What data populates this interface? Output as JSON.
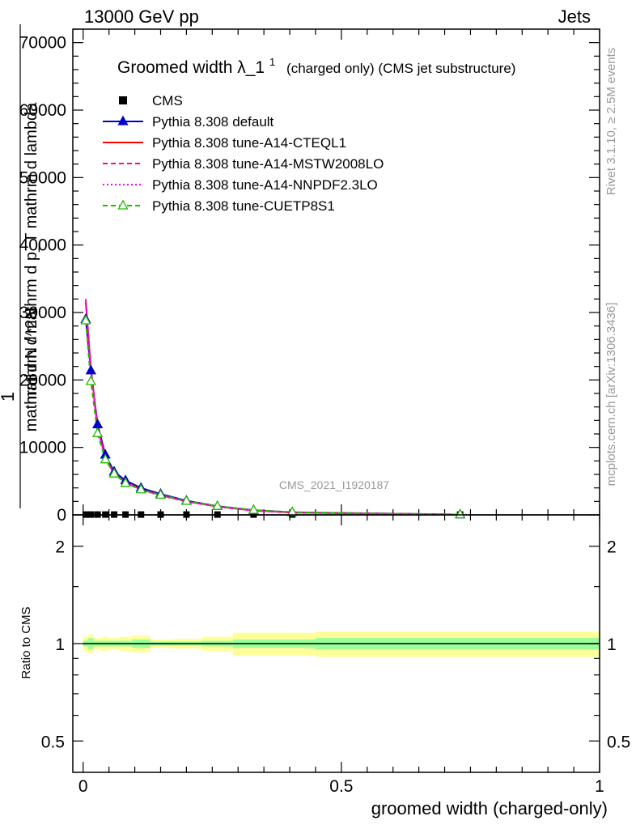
{
  "header": {
    "energy_label": "13000 GeV pp",
    "category_label": "Jets"
  },
  "side_labels": {
    "rivet": "Rivet 3.1.10, ≥ 2.5M events",
    "source": "mcplots.cern.ch [arXiv:1306.3436]"
  },
  "chart_data": [
    {
      "type": "line",
      "panel": "main",
      "title": "Groomed width",
      "title_symbol": "λ_1",
      "title_superscript": "1",
      "subtitle": "(charged only) (CMS jet substructure)",
      "watermark": "CMS_2021_I1920187",
      "ylabel_numerator": "1",
      "ylabel_denominator": "mathrm d N / mathrm d p_T mathrm d lambda",
      "ylabel_top": "mathrm d^2N",
      "ylim": [
        0,
        72000
      ],
      "xlim": [
        -0.02,
        1.0
      ],
      "y_ticks": [
        0,
        10000,
        20000,
        30000,
        40000,
        50000,
        60000,
        70000
      ],
      "legend_placement": "top-left",
      "x": [
        0.005,
        0.015,
        0.028,
        0.043,
        0.06,
        0.082,
        0.112,
        0.15,
        0.2,
        0.26,
        0.33,
        0.405,
        0.73
      ],
      "series": [
        {
          "name": "CMS",
          "color": "#000000",
          "marker": "square",
          "values": [
            50,
            50,
            50,
            50,
            50,
            50,
            50,
            50,
            50,
            50,
            50,
            50,
            50
          ]
        },
        {
          "name": "Pythia 8.308 default",
          "color": "#0000cc",
          "marker": "triangle",
          "dash": "solid",
          "values": [
            29000,
            21400,
            13400,
            8900,
            6400,
            5100,
            4000,
            3100,
            2100,
            1300,
            700,
            380,
            50
          ]
        },
        {
          "name": "Pythia 8.308 tune-A14-CTEQL1",
          "color": "#ff0000",
          "marker": "none",
          "dash": "solid",
          "values": [
            31500,
            21800,
            12900,
            8600,
            6100,
            4900,
            3800,
            2950,
            2000,
            1250,
            650,
            350,
            45
          ]
        },
        {
          "name": "Pythia 8.308 tune-A14-MSTW2008LO",
          "color": "#ff00aa",
          "marker": "none",
          "dash": "dashed",
          "values": [
            31800,
            21700,
            12800,
            8550,
            6050,
            4850,
            3750,
            2900,
            1980,
            1230,
            640,
            340,
            45
          ]
        },
        {
          "name": "Pythia 8.308 tune-A14-NNPDF2.3LO",
          "color": "#ff00ff",
          "marker": "none",
          "dash": "dotted",
          "values": [
            32000,
            21600,
            12700,
            8500,
            6000,
            4800,
            3700,
            2880,
            1960,
            1220,
            630,
            335,
            45
          ]
        },
        {
          "name": "Pythia 8.308 tune-CUETP8S1",
          "color": "#22bb00",
          "marker": "open-triangle",
          "dash": "dashed",
          "values": [
            28800,
            19800,
            12100,
            8200,
            6100,
            4700,
            3750,
            2950,
            2050,
            1300,
            720,
            400,
            50
          ]
        }
      ]
    },
    {
      "type": "area",
      "panel": "ratio",
      "ylabel": "Ratio to CMS",
      "xlabel": "groomed width (charged-only)",
      "y_scale": "log",
      "ylim": [
        0.4,
        2.5
      ],
      "xlim": [
        -0.02,
        1.0
      ],
      "y_ticks": [
        0.5,
        1,
        2
      ],
      "y_tick_labels": [
        "0.5",
        "1",
        "2"
      ],
      "x_ticks": [
        0,
        0.5,
        1
      ],
      "x_tick_labels": [
        "0",
        "0.5",
        "1"
      ],
      "reference_line": 1,
      "bands": [
        {
          "x0": 0.0,
          "x1": 0.01,
          "inner": 0.02,
          "outer": 0.05
        },
        {
          "x0": 0.01,
          "x1": 0.02,
          "inner": 0.04,
          "outer": 0.07
        },
        {
          "x0": 0.02,
          "x1": 0.035,
          "inner": 0.02,
          "outer": 0.04
        },
        {
          "x0": 0.035,
          "x1": 0.05,
          "inner": 0.02,
          "outer": 0.05
        },
        {
          "x0": 0.05,
          "x1": 0.07,
          "inner": 0.02,
          "outer": 0.04
        },
        {
          "x0": 0.07,
          "x1": 0.095,
          "inner": 0.02,
          "outer": 0.05
        },
        {
          "x0": 0.095,
          "x1": 0.13,
          "inner": 0.03,
          "outer": 0.06
        },
        {
          "x0": 0.13,
          "x1": 0.17,
          "inner": 0.015,
          "outer": 0.03
        },
        {
          "x0": 0.17,
          "x1": 0.23,
          "inner": 0.015,
          "outer": 0.035
        },
        {
          "x0": 0.23,
          "x1": 0.29,
          "inner": 0.02,
          "outer": 0.05
        },
        {
          "x0": 0.29,
          "x1": 0.37,
          "inner": 0.03,
          "outer": 0.08
        },
        {
          "x0": 0.37,
          "x1": 0.45,
          "inner": 0.03,
          "outer": 0.08
        },
        {
          "x0": 0.45,
          "x1": 1.0,
          "inner": 0.04,
          "outer": 0.09
        }
      ]
    }
  ]
}
